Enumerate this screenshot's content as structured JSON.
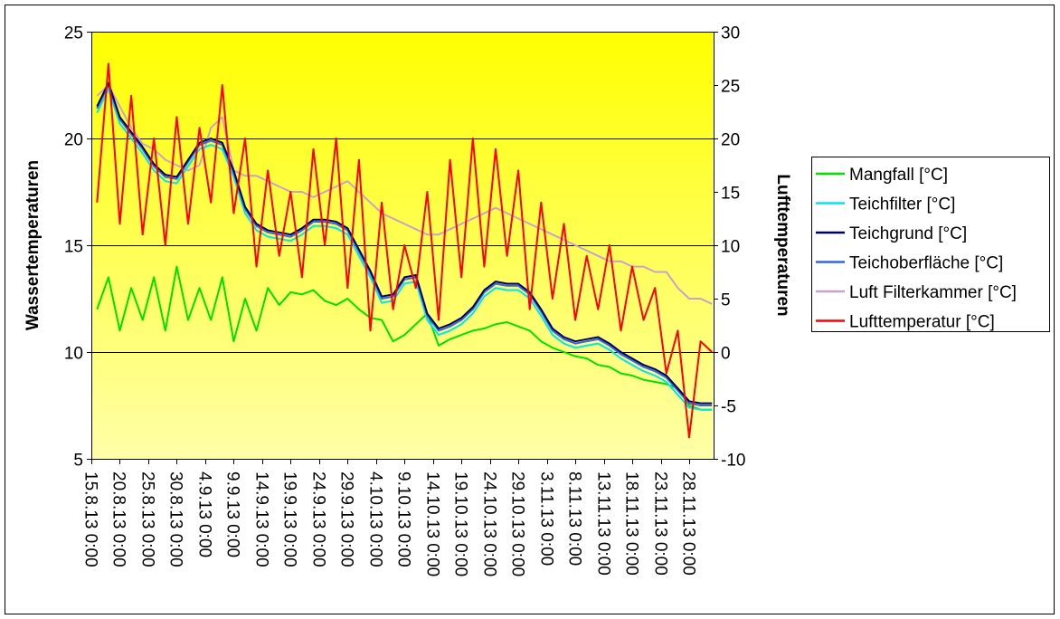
{
  "chart_data": {
    "type": "line",
    "title": "",
    "xlabel": "",
    "ylabel": "Wassertemperaturen",
    "y2label": "Lufttemperaturen",
    "ylim": [
      5,
      25
    ],
    "y2lim": [
      -10,
      30
    ],
    "yticks": [
      5,
      10,
      15,
      20,
      25
    ],
    "y2ticks": [
      -10,
      -5,
      0,
      5,
      10,
      15,
      20,
      25,
      30
    ],
    "grid": true,
    "legend_position": "right",
    "x_unit": "days since 15.8.13 0:00",
    "xlim": [
      0,
      109
    ],
    "x_tick_labels": [
      "15.8.13 0:00",
      "20.8.13 0:00",
      "25.8.13 0:00",
      "30.8.13 0:00",
      "4.9.13 0:00",
      "9.9.13 0:00",
      "14.9.13 0:00",
      "19.9.13 0:00",
      "24.9.13 0:00",
      "29.9.13 0:00",
      "4.10.13 0:00",
      "9.10.13 0:00",
      "14.10.13 0:00",
      "19.10.13 0:00",
      "24.10.13 0:00",
      "29.10.13 0:00",
      "3.11.13 0:00",
      "8.11.13 0:00",
      "13.11.13 0:00",
      "18.11.13 0:00",
      "23.11.13 0:00",
      "28.11.13 0:00"
    ],
    "x_tick_step_days": 5,
    "x": [
      1,
      3,
      5,
      7,
      9,
      11,
      13,
      15,
      17,
      19,
      21,
      23,
      25,
      27,
      29,
      31,
      33,
      35,
      37,
      39,
      41,
      43,
      45,
      47,
      49,
      51,
      53,
      55,
      57,
      59,
      61,
      63,
      65,
      67,
      69,
      71,
      73,
      75,
      77,
      79,
      81,
      83,
      85,
      87,
      89,
      91,
      93,
      95,
      97,
      99,
      101,
      103,
      105,
      107,
      109
    ],
    "series": [
      {
        "name": "Mangfall [°C]",
        "axis": "left",
        "color": "#00E000",
        "values": [
          12,
          13.5,
          11,
          13,
          11.5,
          13.5,
          11,
          14,
          11.5,
          13,
          11.5,
          13.5,
          10.5,
          12.5,
          11,
          13,
          12.2,
          12.8,
          12.7,
          12.9,
          12.4,
          12.2,
          12.5,
          12,
          11.6,
          11.5,
          10.5,
          10.8,
          11.3,
          11.8,
          10.3,
          10.6,
          10.8,
          11,
          11.1,
          11.3,
          11.4,
          11.2,
          11,
          10.5,
          10.2,
          10,
          9.8,
          9.7,
          9.4,
          9.3,
          9,
          8.9,
          8.7,
          8.6,
          8.5,
          8.3,
          7.5,
          7.3,
          7.3
        ]
      },
      {
        "name": "Teichfilter [°C]",
        "axis": "left",
        "color": "#00E5EE",
        "values": [
          21.2,
          22.3,
          20.7,
          20,
          19.3,
          18.5,
          18,
          17.9,
          18.7,
          19.5,
          19.7,
          19.5,
          18.2,
          16.5,
          15.7,
          15.4,
          15.3,
          15.2,
          15.5,
          15.9,
          15.9,
          15.8,
          15.5,
          14.5,
          13.5,
          12.3,
          12.4,
          13.2,
          13.3,
          11.5,
          10.8,
          11,
          11.3,
          11.8,
          12.6,
          13,
          12.9,
          12.9,
          12.5,
          11.7,
          10.8,
          10.4,
          10.2,
          10.3,
          10.4,
          10.1,
          9.7,
          9.4,
          9.1,
          8.9,
          8.6,
          8,
          7.4,
          7.3,
          7.3
        ]
      },
      {
        "name": "Teichgrund [°C]",
        "axis": "left",
        "color": "#000066",
        "values": [
          21.5,
          22.6,
          21,
          20.3,
          19.6,
          18.8,
          18.3,
          18.2,
          19,
          19.8,
          20,
          19.8,
          18.5,
          16.8,
          16,
          15.7,
          15.6,
          15.5,
          15.8,
          16.2,
          16.2,
          16.1,
          15.8,
          14.8,
          13.8,
          12.6,
          12.7,
          13.5,
          13.6,
          11.8,
          11.1,
          11.3,
          11.6,
          12.1,
          12.9,
          13.3,
          13.2,
          13.2,
          12.8,
          12,
          11.1,
          10.7,
          10.5,
          10.6,
          10.7,
          10.4,
          10,
          9.7,
          9.4,
          9.2,
          8.9,
          8.3,
          7.7,
          7.6,
          7.6
        ]
      },
      {
        "name": "Teichoberfläche [°C]",
        "axis": "left",
        "color": "#3366DD",
        "values": [
          21.4,
          22.5,
          20.9,
          20.2,
          19.5,
          18.7,
          18.2,
          18.1,
          18.9,
          19.7,
          19.9,
          19.7,
          18.4,
          16.7,
          15.9,
          15.6,
          15.5,
          15.4,
          15.7,
          16.1,
          16.1,
          16,
          15.7,
          14.7,
          13.7,
          12.5,
          12.6,
          13.4,
          13.5,
          11.7,
          11,
          11.2,
          11.5,
          12,
          12.8,
          13.2,
          13.1,
          13.1,
          12.7,
          11.9,
          11,
          10.6,
          10.4,
          10.5,
          10.6,
          10.3,
          9.9,
          9.6,
          9.3,
          9.1,
          8.8,
          8.2,
          7.6,
          7.5,
          7.5
        ]
      },
      {
        "name": "Luft Filterkammer [°C]",
        "axis": "right",
        "color": "#C8A2C8",
        "values": [
          24,
          25,
          23,
          21,
          19.5,
          19,
          18,
          17.5,
          17,
          17.5,
          21,
          22,
          17,
          16.5,
          16.5,
          16,
          15.5,
          15,
          15,
          14.5,
          15,
          15.5,
          16,
          15,
          14,
          13,
          12.5,
          12,
          11.5,
          11,
          11,
          11.5,
          12,
          12.5,
          13,
          13.5,
          13,
          12.5,
          12,
          11.5,
          11,
          10.5,
          10,
          9.5,
          9,
          8.5,
          8.5,
          8,
          8,
          7.5,
          7.5,
          6,
          5,
          5,
          4.5
        ]
      },
      {
        "name": "Lufttemperatur [°C]",
        "axis": "right",
        "color": "#FF0000",
        "values": [
          14,
          27,
          12,
          24,
          11,
          20,
          10,
          22,
          12,
          21,
          14,
          25,
          13,
          20,
          8,
          17,
          9,
          15,
          7,
          19,
          10,
          20,
          6,
          18,
          2,
          14,
          4,
          10,
          6,
          15,
          3,
          18,
          7,
          20,
          8,
          19,
          9,
          17,
          4,
          14,
          5,
          12,
          3,
          9,
          4,
          10,
          2,
          8,
          3,
          6,
          -2,
          2,
          -8,
          1,
          0
        ]
      }
    ]
  }
}
